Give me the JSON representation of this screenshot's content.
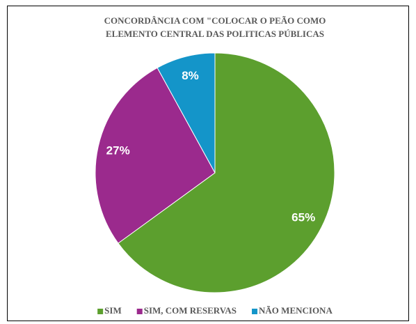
{
  "chart_data": {
    "type": "pie",
    "title": [
      "CONCORDÂNCIA COM \"COLOCAR O PEÃO COMO",
      "ELEMENTO CENTRAL DAS POLITICAS PÚBLICAS"
    ],
    "categories": [
      "SIM",
      "SIM, COM RESERVAS",
      "NÃO MENCIONA"
    ],
    "values": [
      65,
      27,
      8
    ],
    "value_labels": [
      "65%",
      "27%",
      "8%"
    ],
    "colors": [
      "#5c9f2e",
      "#9b2a8d",
      "#1495c9"
    ],
    "legend": "bottom"
  }
}
